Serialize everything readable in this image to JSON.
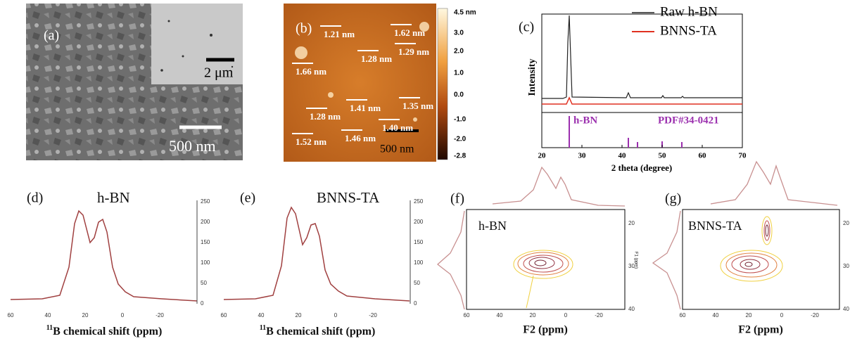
{
  "panels": {
    "a": {
      "label": "(a)",
      "inset_scale": "2 μm",
      "scale": "500 nm"
    },
    "b": {
      "label": "(b)",
      "heights": [
        "1.21 nm",
        "1.62 nm",
        "1.66 nm",
        "1.28 nm",
        "1.29 nm",
        "1.41 nm",
        "1.35 nm",
        "1.28 nm",
        "1.40 nm",
        "1.46 nm",
        "1.52 nm"
      ],
      "scale": "500 nm",
      "colorbar_ticks": [
        "4.5 nm",
        "3.0",
        "2.0",
        "1.0",
        "0.0",
        "-1.0",
        "-2.0",
        "-2.8"
      ]
    },
    "c": {
      "label": "(c)",
      "legend": [
        "Raw h-BN",
        "BNNS-TA"
      ],
      "y_label": "Intensity",
      "x_label": "2 theta (degree)",
      "x_ticks": [
        "20",
        "30",
        "40",
        "50",
        "60",
        "70"
      ],
      "ref_label": "h-BN",
      "ref_card": "PDF#34-0421"
    },
    "d": {
      "label": "(d)",
      "title": "h-BN",
      "y_ticks": [
        "250",
        "200",
        "150",
        "100",
        "50",
        "0"
      ],
      "x_ticks": [
        "60",
        "40",
        "20",
        "0",
        "-20"
      ],
      "x_label_sup": "11",
      "x_label": "B chemical shift (ppm)"
    },
    "e": {
      "label": "(e)",
      "title": "BNNS-TA",
      "y_ticks": [
        "250",
        "200",
        "150",
        "100",
        "50",
        "0"
      ],
      "x_ticks": [
        "60",
        "40",
        "20",
        "0",
        "-20"
      ],
      "x_label_sup": "11",
      "x_label": "B chemical shift (ppm)"
    },
    "f": {
      "label": "(f)",
      "title": "h-BN",
      "y_ticks": [
        "20",
        "30",
        "40"
      ],
      "y_label": "F1 (ppm)",
      "x_ticks": [
        "60",
        "40",
        "20",
        "0",
        "-20"
      ],
      "x_label": "F2 (ppm)"
    },
    "g": {
      "label": "(g)",
      "title": "BNNS-TA",
      "y_ticks": [
        "20",
        "30",
        "40"
      ],
      "x_ticks": [
        "60",
        "40",
        "20",
        "0",
        "-20"
      ],
      "x_label": "F2 (ppm)"
    }
  }
}
